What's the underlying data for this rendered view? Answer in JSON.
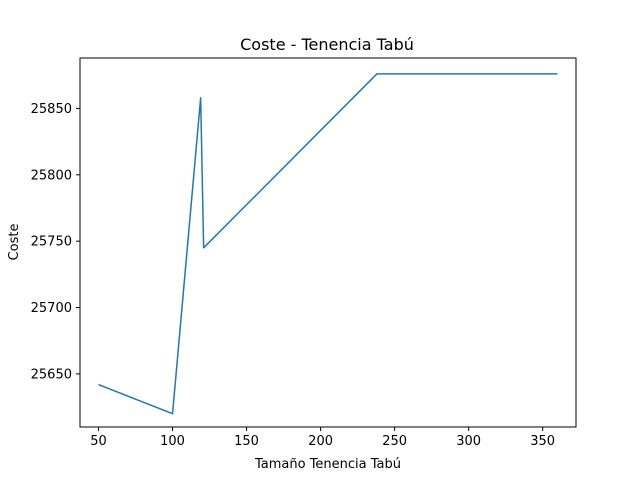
{
  "chart_data": {
    "type": "line",
    "title": "Coste - Tenencia Tabú",
    "xlabel": "Tamaño Tenencia Tabú",
    "ylabel": "Coste",
    "xlim": [
      37.5,
      372.5
    ],
    "ylim": [
      25610,
      25888
    ],
    "xticks": [
      50,
      100,
      150,
      200,
      250,
      300,
      350
    ],
    "yticks": [
      25650,
      25700,
      25750,
      25800,
      25850
    ],
    "grid": false,
    "series": [
      {
        "color": "#1f77b4",
        "x": [
          50,
          100,
          119,
          121,
          238,
          360
        ],
        "y": [
          25642,
          25620,
          25858,
          25745,
          25876,
          25876
        ]
      }
    ]
  }
}
